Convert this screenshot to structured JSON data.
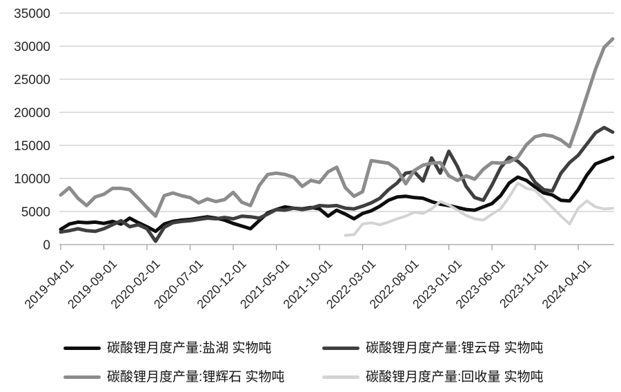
{
  "chart_data": {
    "type": "line",
    "title": "",
    "xlabel": "",
    "ylabel": "",
    "ylim": [
      0,
      35000
    ],
    "y_tick_step": 5000,
    "y_tick_labels": [
      "0",
      "5000",
      "10000",
      "15000",
      "20000",
      "25000",
      "30000",
      "35000"
    ],
    "grid": "horizontal",
    "legend_position": "bottom",
    "x_frequency": "monthly",
    "x_tick_every": 5,
    "x_tick_labels": [
      "2019-04-01",
      "2019-09-01",
      "2020-02-01",
      "2020-07-01",
      "2020-12-01",
      "2021-05-01",
      "2021-10-01",
      "2022-03-01",
      "2022-08-01",
      "2023-01-01",
      "2023-06-01",
      "2023-11-01",
      "2024-04-01"
    ],
    "x_months": [
      "2019-04",
      "2019-05",
      "2019-06",
      "2019-07",
      "2019-08",
      "2019-09",
      "2019-10",
      "2019-11",
      "2019-12",
      "2020-01",
      "2020-02",
      "2020-03",
      "2020-04",
      "2020-05",
      "2020-06",
      "2020-07",
      "2020-08",
      "2020-09",
      "2020-10",
      "2020-11",
      "2020-12",
      "2021-01",
      "2021-02",
      "2021-03",
      "2021-04",
      "2021-05",
      "2021-06",
      "2021-07",
      "2021-08",
      "2021-09",
      "2021-10",
      "2021-11",
      "2021-12",
      "2022-01",
      "2022-02",
      "2022-03",
      "2022-04",
      "2022-05",
      "2022-06",
      "2022-07",
      "2022-08",
      "2022-09",
      "2022-10",
      "2022-11",
      "2022-12",
      "2023-01",
      "2023-02",
      "2023-03",
      "2023-04",
      "2023-05",
      "2023-06",
      "2023-07",
      "2023-08",
      "2023-09",
      "2023-10",
      "2023-11",
      "2023-12",
      "2024-01",
      "2024-02",
      "2024-03",
      "2024-04",
      "2024-05",
      "2024-06",
      "2024-07",
      "2024-08"
    ],
    "series": [
      {
        "id": "yanhu",
        "name": "碳酸锂月度产量:盐湖 实物吨",
        "color": "#0d0d0d",
        "stroke_width": 5,
        "values": [
          2300,
          3100,
          3400,
          3300,
          3400,
          3200,
          3500,
          3100,
          4000,
          3300,
          2700,
          2000,
          3100,
          3500,
          3700,
          3800,
          4000,
          4200,
          4000,
          3700,
          3200,
          2800,
          2400,
          3600,
          4800,
          5300,
          5700,
          5500,
          5400,
          5600,
          5400,
          4300,
          5200,
          4600,
          3900,
          4700,
          5100,
          5800,
          6700,
          7200,
          7300,
          7100,
          7000,
          6500,
          6100,
          5900,
          5600,
          5300,
          5200,
          5700,
          6200,
          7400,
          9300,
          10200,
          9700,
          8700,
          7800,
          7500,
          6700,
          6600,
          8300,
          10500,
          12200,
          12700,
          13200
        ]
      },
      {
        "id": "liyunmu",
        "name": "碳酸锂月度产量:锂云母 实物吨",
        "color": "#3f3f3f",
        "stroke_width": 5,
        "values": [
          1900,
          2100,
          2400,
          2100,
          2000,
          2400,
          3000,
          3600,
          2700,
          3000,
          2400,
          500,
          2600,
          3300,
          3500,
          3600,
          3800,
          4000,
          3900,
          4100,
          3900,
          4300,
          4200,
          4000,
          4600,
          5300,
          5200,
          5500,
          5300,
          5500,
          5900,
          5800,
          5900,
          5500,
          5400,
          5800,
          6300,
          7000,
          8300,
          9300,
          10800,
          11000,
          9600,
          13100,
          10800,
          14100,
          11800,
          8800,
          7100,
          6700,
          9000,
          11600,
          13200,
          12600,
          11400,
          9400,
          8300,
          8100,
          10800,
          12400,
          13500,
          15200,
          16900,
          17700,
          17000
        ]
      },
      {
        "id": "lihuishi",
        "name": "碳酸锂月度产量:锂辉石 实物吨",
        "color": "#8c8c8c",
        "stroke_width": 5,
        "values": [
          7500,
          8600,
          7000,
          5900,
          7200,
          7600,
          8500,
          8500,
          8300,
          7000,
          5600,
          4300,
          7400,
          7800,
          7400,
          7100,
          6300,
          6900,
          6500,
          6800,
          7900,
          6400,
          5900,
          8900,
          10600,
          10800,
          10600,
          10200,
          8800,
          9700,
          9400,
          11000,
          11700,
          8600,
          7300,
          8000,
          12700,
          12500,
          12300,
          11400,
          9200,
          11200,
          12000,
          12300,
          12400,
          10400,
          9700,
          10400,
          9900,
          11400,
          12400,
          12300,
          12500,
          13200,
          15100,
          16300,
          16600,
          16400,
          15800,
          14800,
          18500,
          22500,
          26500,
          29800,
          31100
        ]
      },
      {
        "id": "huishouliang",
        "name": "碳酸锂月度产量:回收量 实物吨",
        "color": "#d3d3d3",
        "stroke_width": 4,
        "values": [
          null,
          null,
          null,
          null,
          null,
          null,
          null,
          null,
          null,
          null,
          null,
          null,
          null,
          null,
          null,
          null,
          null,
          null,
          null,
          null,
          null,
          null,
          null,
          null,
          null,
          null,
          null,
          null,
          null,
          null,
          null,
          null,
          null,
          1400,
          1500,
          3100,
          3300,
          3000,
          3400,
          3900,
          4300,
          4900,
          4700,
          5400,
          6500,
          6000,
          5200,
          4400,
          3900,
          3700,
          4600,
          5400,
          7200,
          9300,
          8500,
          8200,
          6900,
          5600,
          4300,
          3100,
          5500,
          6600,
          5700,
          5400,
          5500
        ]
      }
    ],
    "colors": {
      "gridline": "#c9c9c9",
      "axis": "#a0a0a0",
      "tick_text": "#262626"
    }
  }
}
